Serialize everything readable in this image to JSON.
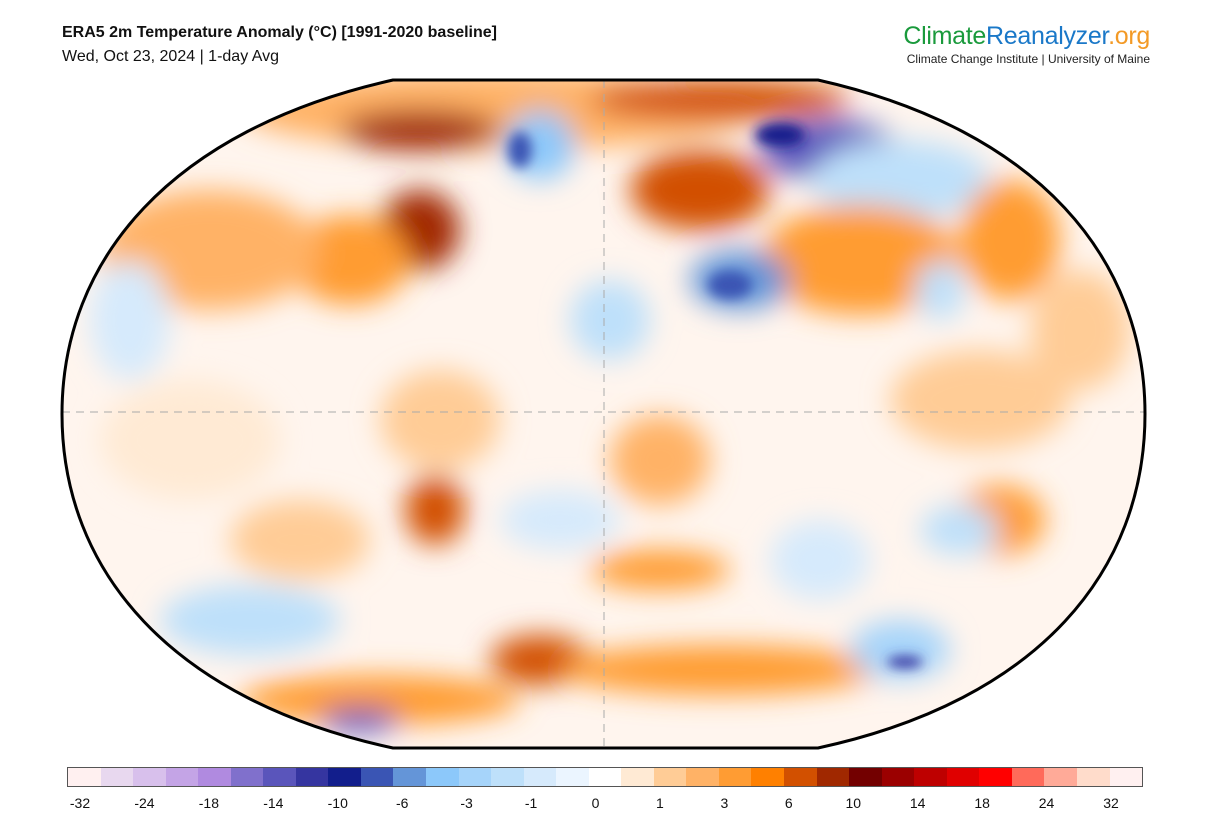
{
  "header": {
    "title": "ERA5 2m Temperature Anomaly (°C) [1991-2020 baseline]",
    "subtitle": "Wed, Oct 23, 2024 | 1-day Avg"
  },
  "logo": {
    "part1": "Climate",
    "part2": "Reanalyzer",
    "part3": ".org",
    "tagline": "Climate Change Institute | University of Maine"
  },
  "colorbar": {
    "colors": [
      "#fff0f0",
      "#e8d8ef",
      "#d8c0ec",
      "#c4a4e6",
      "#b08ae0",
      "#8070cc",
      "#5a55bb",
      "#3535a0",
      "#121e8c",
      "#3a55b4",
      "#6495d8",
      "#8cc8fa",
      "#a6d4fa",
      "#bee0fa",
      "#d6eafc",
      "#ebf5ff",
      "#ffffff",
      "#ffead4",
      "#ffcc96",
      "#ffb266",
      "#ff9c33",
      "#ff8000",
      "#d25000",
      "#a02800",
      "#730000",
      "#9b0000",
      "#be0000",
      "#e00000",
      "#ff0000",
      "#ff6a5a",
      "#ffaa98",
      "#ffdccb",
      "#fff0f0"
    ],
    "labels": [
      "-32",
      "-24",
      "-18",
      "-14",
      "-10",
      "-6",
      "-3",
      "-1",
      "0",
      "1",
      "3",
      "6",
      "10",
      "14",
      "18",
      "24",
      "32"
    ]
  }
}
